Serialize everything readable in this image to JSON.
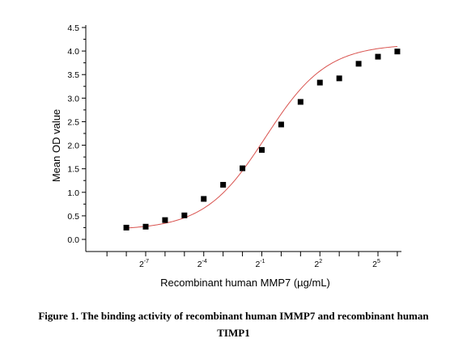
{
  "chart_data": {
    "type": "scatter",
    "xlabel": "Recombinant human MMP7 (µg/mL)",
    "ylabel": "Mean OD value",
    "x_scale": "log2",
    "x_tick_labels": [
      {
        "base": "2",
        "exp": "-7",
        "log2": -7
      },
      {
        "base": "2",
        "exp": "-4",
        "log2": -4
      },
      {
        "base": "2",
        "exp": "-1",
        "log2": -1
      },
      {
        "base": "2",
        "exp": "2",
        "log2": 2
      },
      {
        "base": "2",
        "exp": "5",
        "log2": 5
      }
    ],
    "x_minor_ticks_log2": [
      -9,
      -8,
      -6,
      -5,
      -3,
      -2,
      0,
      1,
      3,
      4,
      6
    ],
    "xlim_log2": [
      -9.6,
      6.4
    ],
    "ylim": [
      -0.1,
      4.5
    ],
    "y_ticks": [
      0.0,
      0.5,
      1.0,
      1.5,
      2.0,
      2.5,
      3.0,
      3.5,
      4.0,
      4.5
    ],
    "y_tick_labels": [
      "0.0",
      "0.5",
      "1.0",
      "1.5",
      "2.0",
      "2.5",
      "3.0",
      "3.5",
      "4.0",
      "4.5"
    ],
    "series": [
      {
        "marker": "square",
        "color": "#000000",
        "x_log2": [
          -8,
          -7,
          -6,
          -5,
          -4,
          -3,
          -2,
          -1,
          0,
          1,
          2,
          3,
          4,
          5,
          6
        ],
        "y": [
          0.25,
          0.27,
          0.41,
          0.51,
          0.86,
          1.16,
          1.51,
          1.9,
          2.44,
          2.92,
          3.33,
          3.42,
          3.73,
          3.88,
          3.99
        ]
      }
    ],
    "fit_curve": {
      "color": "#d9534f",
      "model": "4PL",
      "bottom": 0.2,
      "top": 4.15,
      "ec50_log2": -0.8,
      "slope_log2": 0.38
    }
  },
  "caption": {
    "line1": "Figure 1. The binding activity of recombinant human IMMP7 and recombinant human",
    "line2": "TIMP1"
  }
}
